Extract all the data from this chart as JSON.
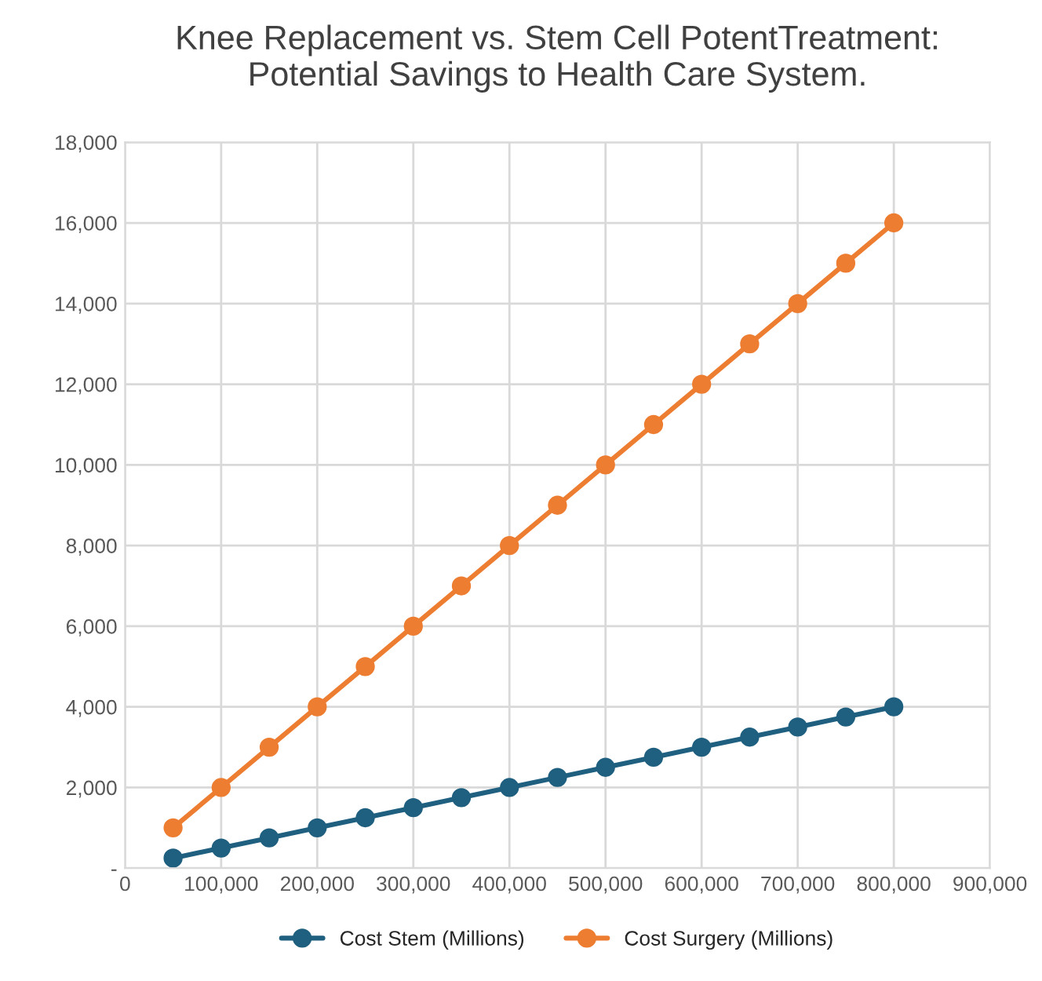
{
  "chart_data": {
    "type": "line",
    "title": "Knee Replacement vs. Stem Cell PotentTreatment:\nPotential Savings to Health Care System.",
    "x": [
      50000,
      100000,
      150000,
      200000,
      250000,
      300000,
      350000,
      400000,
      450000,
      500000,
      550000,
      600000,
      650000,
      700000,
      750000,
      800000
    ],
    "series": [
      {
        "name": "Cost Stem (Millions)",
        "color": "#1f5f7f",
        "values": [
          250,
          500,
          750,
          1000,
          1250,
          1500,
          1750,
          2000,
          2250,
          2500,
          2750,
          3000,
          3250,
          3500,
          3750,
          4000
        ]
      },
      {
        "name": "Cost Surgery (Millions)",
        "color": "#ed7d31",
        "values": [
          1000,
          2000,
          3000,
          4000,
          5000,
          6000,
          7000,
          8000,
          9000,
          10000,
          11000,
          12000,
          13000,
          14000,
          15000,
          16000
        ]
      }
    ],
    "xlim": [
      0,
      900000
    ],
    "xticks": [
      0,
      {
        "value": 100000,
        "label": "100,000"
      },
      {
        "value": 200000,
        "label": "200,000"
      },
      {
        "value": 300000,
        "label": "300,000"
      },
      {
        "value": 400000,
        "label": "400,000"
      },
      {
        "value": 500000,
        "label": "500,000"
      },
      {
        "value": 600000,
        "label": "600,000"
      },
      {
        "value": 700000,
        "label": "700,000"
      },
      {
        "value": 800000,
        "label": "800,000"
      },
      {
        "value": 900000,
        "label": "900,000"
      }
    ],
    "ylim": [
      0,
      18000
    ],
    "yticks": [
      {
        "value": 0,
        "label": "-"
      },
      {
        "value": 2000,
        "label": "2,000"
      },
      {
        "value": 4000,
        "label": "4,000"
      },
      {
        "value": 6000,
        "label": "6,000"
      },
      {
        "value": 8000,
        "label": "8,000"
      },
      {
        "value": 10000,
        "label": "10,000"
      },
      {
        "value": 12000,
        "label": "12,000"
      },
      {
        "value": 14000,
        "label": "14,000"
      },
      {
        "value": 16000,
        "label": "16,000"
      },
      {
        "value": 18000,
        "label": "18,000"
      }
    ],
    "grid": true,
    "legend": "bottom",
    "marker": "circle",
    "line_style": "solid"
  }
}
